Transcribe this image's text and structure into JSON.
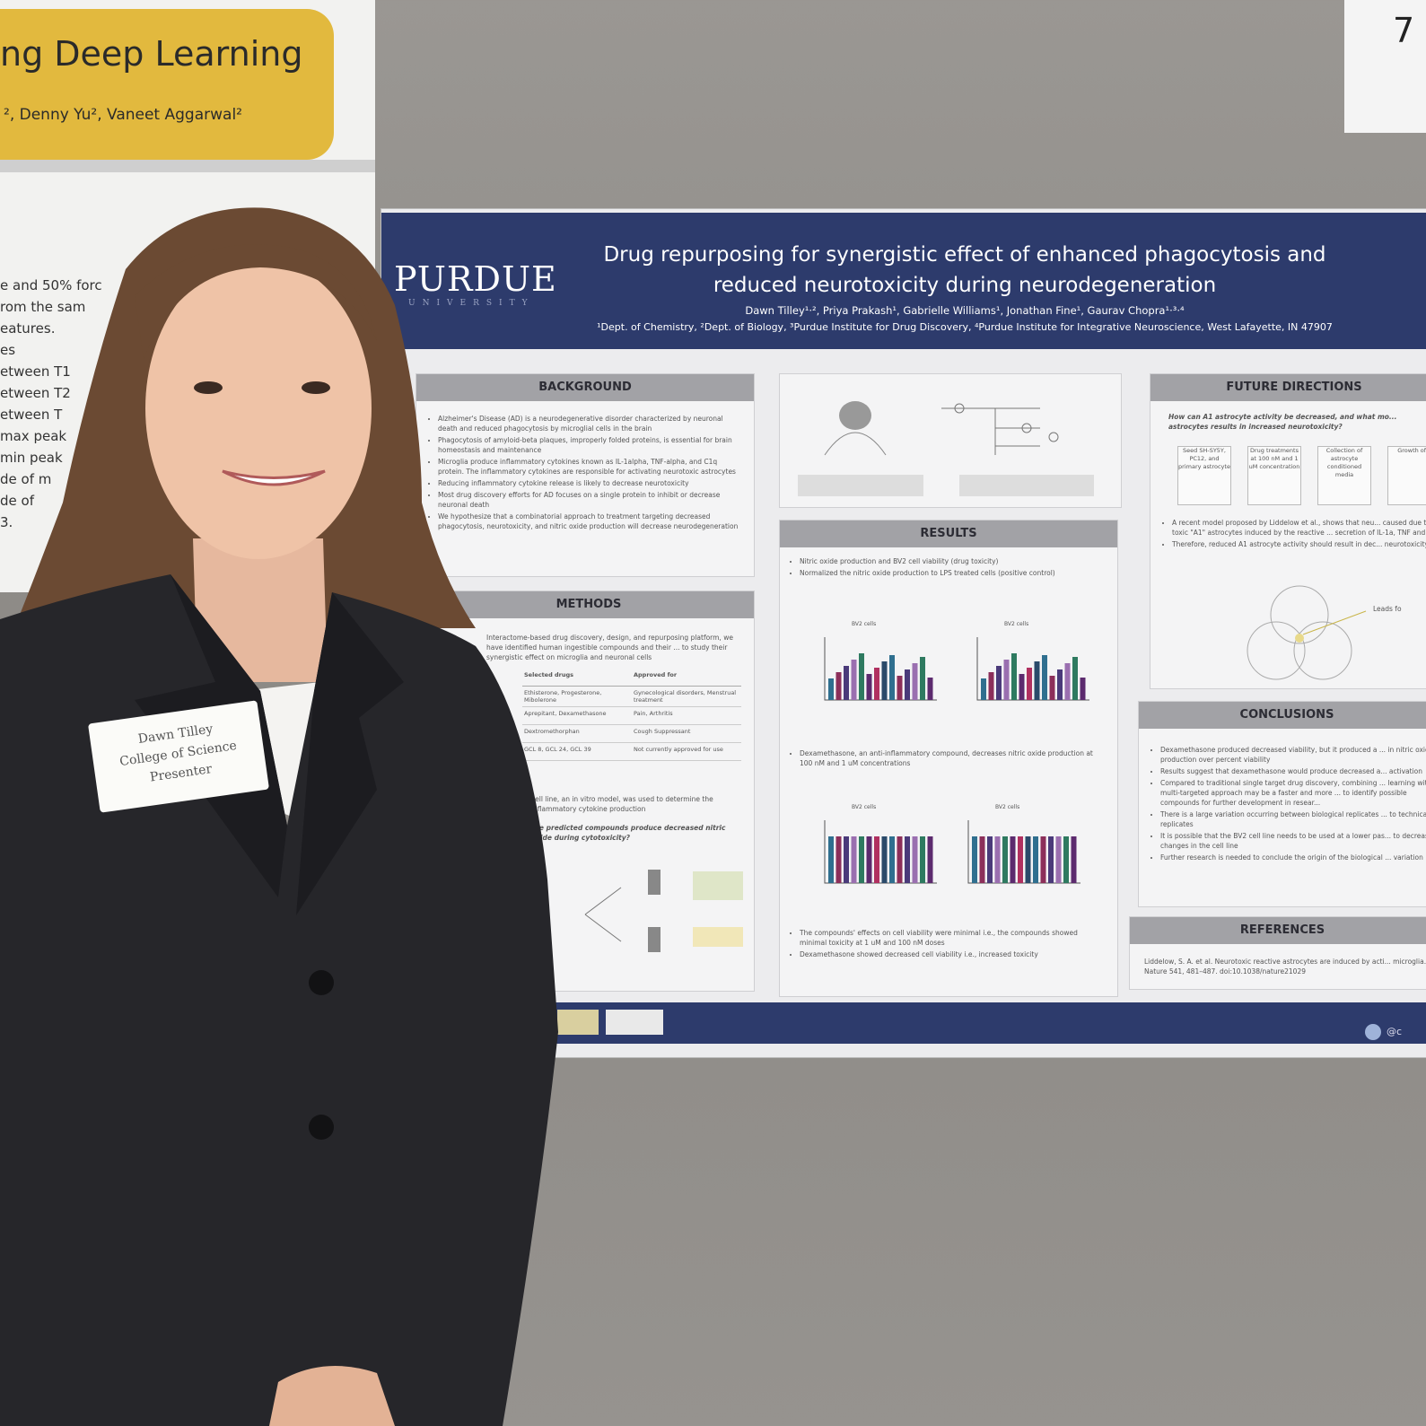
{
  "left_poster": {
    "title": "ng Deep Learning",
    "authors": "², Denny Yu², Vaneet Aggarwal²",
    "lines": [
      "e and 50% forc",
      "rom the sam",
      "eatures.",
      "es",
      "etween T1",
      "etween T2",
      "etween T",
      "max peak",
      "min peak",
      "de of m",
      "de of",
      "3."
    ]
  },
  "corner_sign": "7",
  "main_poster": {
    "logo": "PURDUE",
    "logo_sub": "UNIVERSITY",
    "title": "Drug repurposing for synergistic effect of enhanced phagocytosis and reduced neurotoxicity during neurodegeneration",
    "authors": "Dawn Tilley¹·², Priya Prakash¹, Gabrielle Williams¹, Jonathan Fine¹, Gaurav Chopra¹·³·⁴",
    "affiliations": "¹Dept. of Chemistry, ²Dept. of Biology, ³Purdue Institute for Drug Discovery, ⁴Purdue Institute for Integrative Neuroscience, West Lafayette, IN 47907",
    "background": {
      "heading": "BACKGROUND",
      "bullets": [
        "Alzheimer's Disease (AD) is a neurodegenerative disorder characterized by neuronal death and reduced phagocytosis by microglial cells in the brain",
        "Phagocytosis of amyloid-beta plaques, improperly folded proteins, is essential for brain homeostasis and maintenance",
        "Microglia produce inflammatory cytokines known as IL-1alpha, TNF-alpha, and C1q protein. The inflammatory cytokines are responsible for activating neurotoxic astrocytes",
        "Reducing inflammatory cytokine release is likely to decrease neurotoxicity",
        "Most drug discovery efforts for AD focuses on a single protein to inhibit or decrease neuronal death",
        "We hypothesize that a combinatorial approach to treatment targeting decreased phagocytosis, neurotoxicity, and nitric oxide production will decrease neurodegeneration"
      ]
    },
    "methods": {
      "heading": "METHODS",
      "text": "Interactome-based drug discovery, design, and repurposing platform, we have identified human ingestible compounds and their ... to study their synergistic effect on microglia and neuronal cells",
      "table_header": [
        "Selected drugs",
        "Approved for"
      ],
      "table_rows": [
        [
          "Ethisterone, Progesterone, Mibolerone",
          "Gynecological disorders, Menstrual treatment"
        ],
        [
          "Aprepitant, Dexamethasone",
          "Pain, Arthritis"
        ],
        [
          "Dextromethorphan",
          "Cough Suppressant"
        ],
        [
          "GCL 8, GCL 24, GCL 39",
          "Not currently approved for use"
        ]
      ],
      "text2": "cell line, an in vitro model, was used to determine the inflammatory cytokine production",
      "question": "the predicted compounds produce decreased nitric oxide during cytotoxicity?"
    },
    "results": {
      "heading": "RESULTS",
      "bullets_top": [
        "Nitric oxide production and BV2 cell viability (drug toxicity)",
        "Normalized the nitric oxide production to LPS treated cells (positive control)"
      ],
      "chart_titles": [
        "BV2 cells",
        "BV2 cells",
        "BV2 cells",
        "BV2 cells"
      ],
      "bullet_mid": "Dexamethasone, an anti-inflammatory compound, decreases nitric oxide production at 100 nM and 1 uM concentrations",
      "bullets_bottom": [
        "The compounds' effects on cell viability were minimal i.e., the compounds showed minimal toxicity at 1 uM and 100 nM doses",
        "Dexamethasone showed decreased cell viability i.e., increased toxicity"
      ]
    },
    "future": {
      "heading": "FUTURE DIRECTIONS",
      "question": "How can A1 astrocyte activity be decreased, and what mo... astrocytes results in increased neurotoxicity?",
      "steps": [
        "Seed SH-SY5Y, PC12, and primary astrocyte",
        "Drug treatments at 100 nM and 1 uM concentration",
        "Collection of astrocyte conditioned media",
        "Growth of..."
      ],
      "bullets": [
        "A recent model proposed by Liddelow et al., shows that neu... caused due to toxic \"A1\" astrocytes induced by the reactive ... secretion of IL-1a, TNF and C1q",
        "Therefore, reduced A1 astrocyte activity should result in dec... neurotoxicity"
      ],
      "leads": "Leads fo"
    },
    "conclusions": {
      "heading": "CONCLUSIONS",
      "bullets": [
        "Dexamethasone produced decreased viability, but it produced a ... in nitric oxide production over percent viability",
        "Results suggest that dexamethasone would produce decreased a... activation",
        "Compared to traditional single target drug discovery, combining ... learning with a multi-targeted approach may be a faster and more ... to identify possible compounds for further development in resear...",
        "There is a large variation occurring between biological replicates ... to technical replicates",
        "It is possible that the BV2 cell line needs to be used at a lower pas... to decrease changes in the cell line",
        "Further research is needed to conclude the origin of the biological ... variation"
      ]
    },
    "references": {
      "heading": "REFERENCES",
      "text": "Liddelow, S. A. et al. Neurotoxic reactive astrocytes are induced by acti... microglia. Nature 541, 481–487. doi:10.1038/nature21029"
    },
    "handle": "@c"
  },
  "name_tag": [
    "Dawn Tilley",
    "College of Science",
    "Presenter"
  ]
}
